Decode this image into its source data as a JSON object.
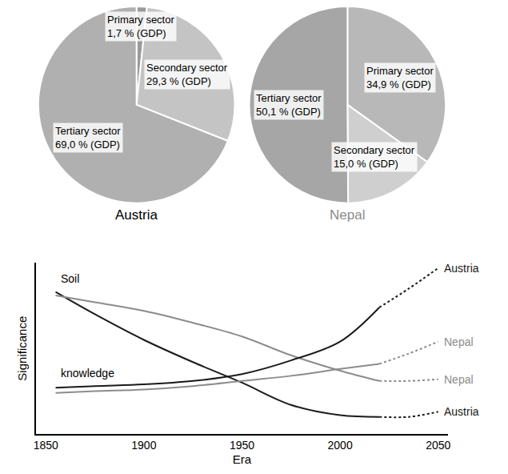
{
  "chart_data": [
    {
      "type": "pie",
      "title": "Austria",
      "color": "#000000",
      "data_labels": true,
      "categories": [
        "Primary sector",
        "Secondary sector",
        "Tertiary sector"
      ],
      "values": [
        1.7,
        29.3,
        69.0
      ],
      "value_labels": [
        "1,7 % (GDP)",
        "29,3 % (GDP)",
        "69,0 % (GDP)"
      ],
      "colors": [
        "#9a9a9a",
        "#c4c4c4",
        "#b0b0b0"
      ]
    },
    {
      "type": "pie",
      "title": "Nepal",
      "color": "#8c8c8c",
      "data_labels": true,
      "categories": [
        "Primary sector",
        "Secondary sector",
        "Tertiary sector"
      ],
      "values": [
        34.9,
        15.0,
        50.1
      ],
      "value_labels": [
        "34,9 % (GDP)",
        "15,0 % (GDP)",
        "50,1 % (GDP)"
      ],
      "colors": [
        "#b8b8b8",
        "#cfcfcf",
        "#a6a6a6"
      ]
    },
    {
      "type": "line",
      "x_label": "Era",
      "y_label": "Significance",
      "xlim": [
        1845,
        2055
      ],
      "xticks": [
        1850,
        1900,
        1950,
        2000,
        2050
      ],
      "ylim": [
        0,
        100
      ],
      "yticks": [],
      "tick_labels": "x",
      "grid": false,
      "annotations": [
        {
          "text": "Soil",
          "x": 1857,
          "y": 86
        },
        {
          "text": "knowledge",
          "x": 1857,
          "y": 31
        }
      ],
      "series": [
        {
          "name": "Austria",
          "color": "#1a1a1a",
          "line_style": "solid",
          "x": [
            1855,
            1875,
            1900,
            1925,
            1950,
            1975,
            2000,
            2020
          ],
          "values": [
            83,
            70,
            55,
            42,
            30,
            17,
            11,
            10
          ]
        },
        {
          "name": "Austria",
          "color": "#1a1a1a",
          "line_style": "dotted",
          "x": [
            2020,
            2035,
            2050
          ],
          "values": [
            10,
            10,
            13
          ]
        },
        {
          "name": "Nepal",
          "color": "#8c8c8c",
          "line_style": "solid",
          "x": [
            1855,
            1875,
            1900,
            1925,
            1950,
            1975,
            2000,
            2020
          ],
          "values": [
            81,
            77,
            72,
            65,
            57,
            46,
            37,
            31
          ]
        },
        {
          "name": "Nepal",
          "color": "#8c8c8c",
          "line_style": "dotted",
          "x": [
            2020,
            2035,
            2050
          ],
          "values": [
            31,
            31,
            32
          ]
        },
        {
          "name": "Austria",
          "color": "#1a1a1a",
          "line_style": "solid",
          "x": [
            1855,
            1875,
            1900,
            1925,
            1950,
            1975,
            2000,
            2020
          ],
          "values": [
            27,
            28,
            29,
            31,
            35,
            43,
            54,
            74
          ]
        },
        {
          "name": "Austria",
          "color": "#1a1a1a",
          "line_style": "dotted",
          "x": [
            2020,
            2035,
            2050
          ],
          "values": [
            74,
            85,
            97
          ]
        },
        {
          "name": "Nepal",
          "color": "#8c8c8c",
          "line_style": "solid",
          "x": [
            1855,
            1875,
            1900,
            1925,
            1950,
            1975,
            2000,
            2020
          ],
          "values": [
            24,
            25,
            26,
            28,
            31,
            34,
            38,
            41
          ]
        },
        {
          "name": "Nepal",
          "color": "#8c8c8c",
          "line_style": "dotted",
          "x": [
            2020,
            2035,
            2050
          ],
          "values": [
            41,
            47,
            54
          ]
        }
      ]
    }
  ]
}
